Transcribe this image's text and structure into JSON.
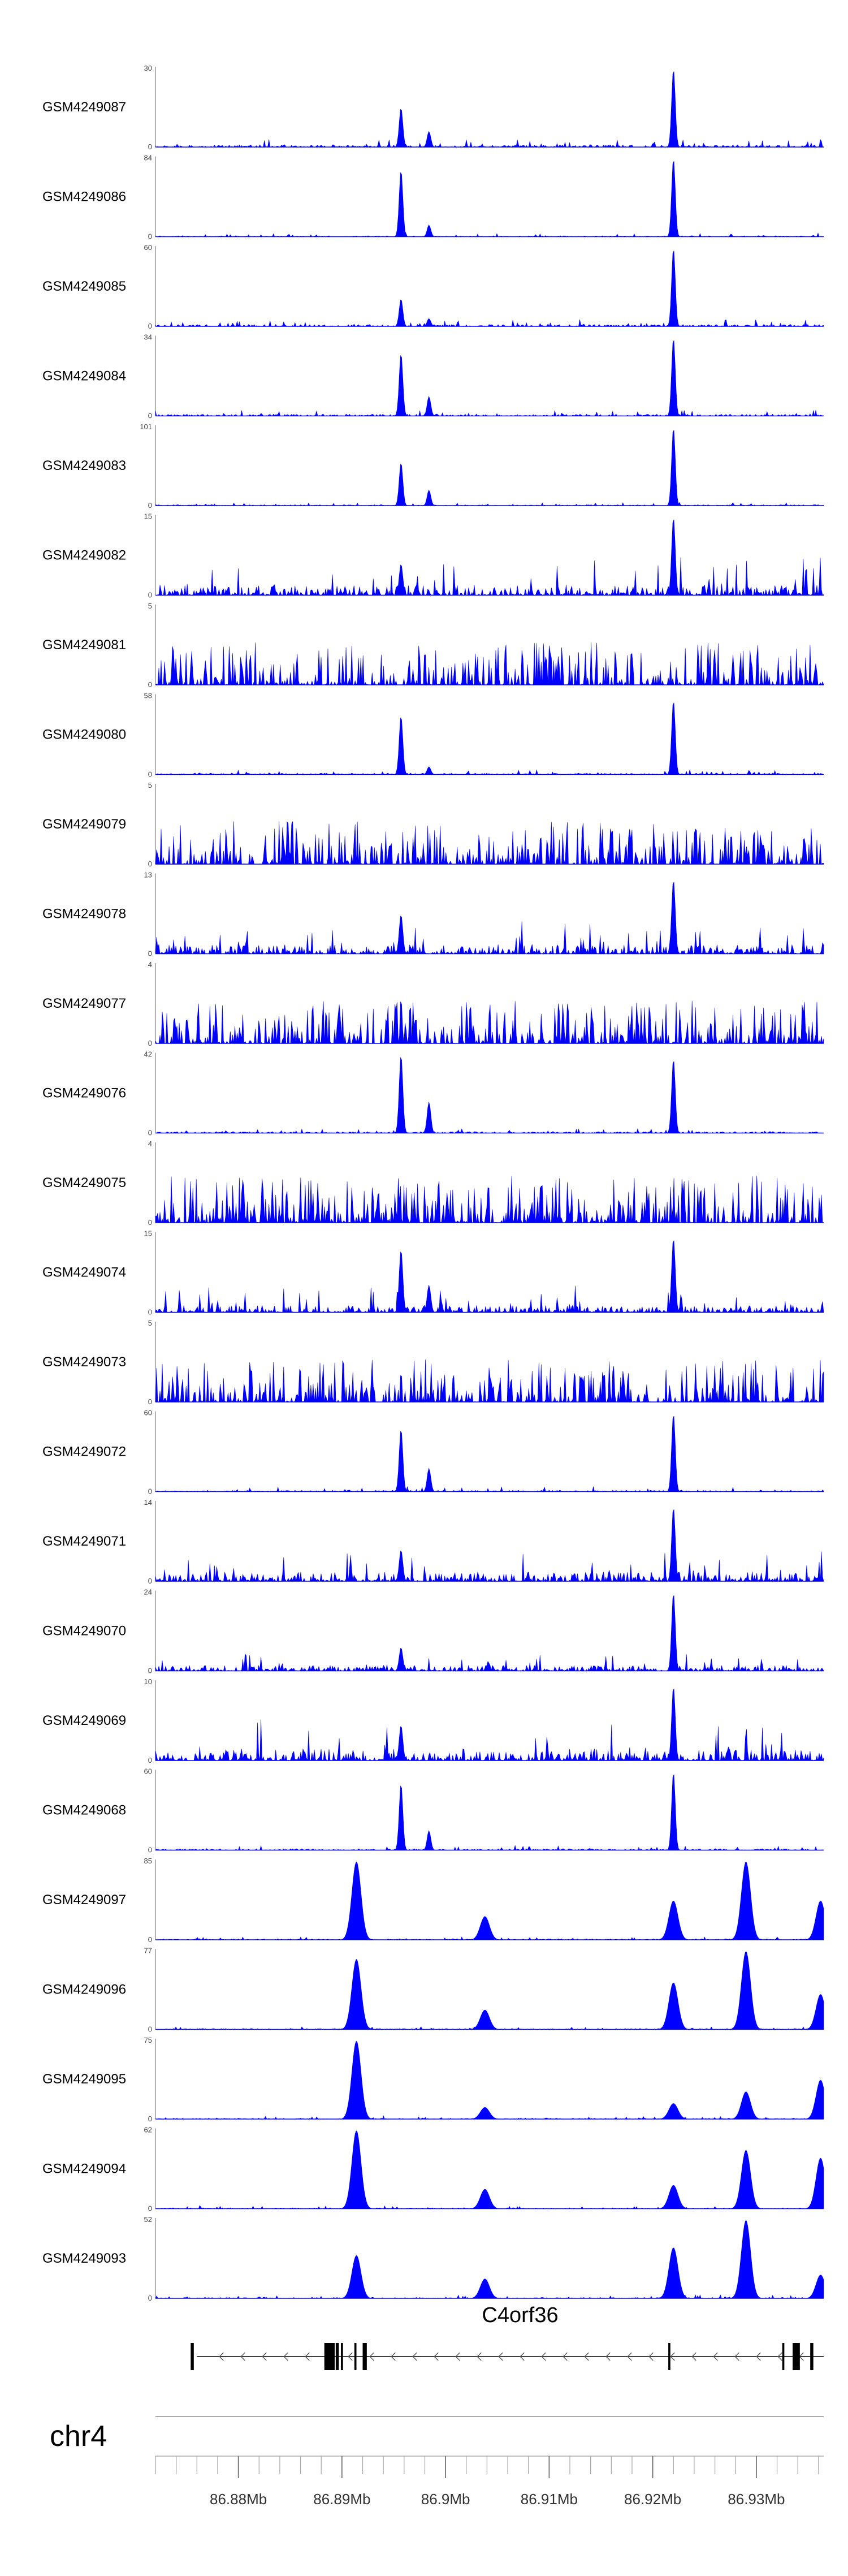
{
  "chart_data": {
    "type": "area",
    "chromosome": "chr4",
    "genome_axis": {
      "xlim_mb": [
        86.872,
        86.9365
      ],
      "tick_labels": [
        "86.88Mb",
        "86.89Mb",
        "86.9Mb",
        "86.91Mb",
        "86.92Mb",
        "86.93Mb"
      ],
      "tick_values_mb": [
        86.88,
        86.89,
        86.9,
        86.91,
        86.92,
        86.93
      ],
      "minor_tick_step_mb": 0.002
    },
    "gene": {
      "name": "C4orf36",
      "strand": "-",
      "start_mb": 86.876,
      "end_mb": 86.9365,
      "exons_mb": [
        [
          86.8754,
          86.8757
        ],
        [
          86.8883,
          86.8893
        ],
        [
          86.8894,
          86.8897
        ],
        [
          86.8899,
          86.8901
        ],
        [
          86.8912,
          86.8914
        ],
        [
          86.892,
          86.8924
        ],
        [
          86.9215,
          86.9217
        ],
        [
          86.9325,
          86.9327
        ],
        [
          86.9335,
          86.9342
        ],
        [
          86.9352,
          86.9355
        ]
      ]
    },
    "peak_positions_mb": {
      "a": 86.8957,
      "b": 86.8984,
      "c": 86.922,
      "d": 86.8914,
      "e": 86.9038,
      "f": 86.929,
      "g": 86.9362
    },
    "series": [
      {
        "name": "GSM4249087",
        "ymax": 30,
        "noise": 0.05,
        "peaks": [
          [
            "c",
            1.0
          ],
          [
            "a",
            0.5
          ],
          [
            "b",
            0.2
          ]
        ]
      },
      {
        "name": "GSM4249086",
        "ymax": 84,
        "noise": 0.02,
        "peaks": [
          [
            "a",
            0.85
          ],
          [
            "c",
            1.0
          ],
          [
            "b",
            0.15
          ]
        ]
      },
      {
        "name": "GSM4249085",
        "ymax": 60,
        "noise": 0.04,
        "peaks": [
          [
            "c",
            1.0
          ],
          [
            "a",
            0.35
          ],
          [
            "b",
            0.1
          ]
        ]
      },
      {
        "name": "GSM4249084",
        "ymax": 34,
        "noise": 0.04,
        "peaks": [
          [
            "a",
            0.8
          ],
          [
            "c",
            1.0
          ],
          [
            "b",
            0.25
          ]
        ]
      },
      {
        "name": "GSM4249083",
        "ymax": 101,
        "noise": 0.02,
        "peaks": [
          [
            "a",
            0.55
          ],
          [
            "c",
            1.0
          ],
          [
            "b",
            0.2
          ]
        ]
      },
      {
        "name": "GSM4249082",
        "ymax": 15,
        "noise": 0.22,
        "peaks": [
          [
            "c",
            1.0
          ],
          [
            "a",
            0.4
          ]
        ]
      },
      {
        "name": "GSM4249081",
        "ymax": 5,
        "noise": 0.55,
        "peaks": []
      },
      {
        "name": "GSM4249080",
        "ymax": 58,
        "noise": 0.03,
        "peaks": [
          [
            "a",
            0.75
          ],
          [
            "c",
            0.95
          ],
          [
            "b",
            0.1
          ]
        ]
      },
      {
        "name": "GSM4249079",
        "ymax": 5,
        "noise": 0.55,
        "peaks": []
      },
      {
        "name": "GSM4249078",
        "ymax": 13,
        "noise": 0.2,
        "peaks": [
          [
            "c",
            0.95
          ],
          [
            "a",
            0.5
          ]
        ]
      },
      {
        "name": "GSM4249077",
        "ymax": 4,
        "noise": 0.55,
        "peaks": []
      },
      {
        "name": "GSM4249076",
        "ymax": 42,
        "noise": 0.03,
        "peaks": [
          [
            "a",
            1.0
          ],
          [
            "b",
            0.4
          ],
          [
            "c",
            0.95
          ]
        ]
      },
      {
        "name": "GSM4249075",
        "ymax": 4,
        "noise": 0.6,
        "peaks": []
      },
      {
        "name": "GSM4249074",
        "ymax": 15,
        "noise": 0.15,
        "peaks": [
          [
            "a",
            0.8
          ],
          [
            "c",
            0.95
          ],
          [
            "b",
            0.35
          ]
        ]
      },
      {
        "name": "GSM4249073",
        "ymax": 5,
        "noise": 0.55,
        "peaks": []
      },
      {
        "name": "GSM4249072",
        "ymax": 60,
        "noise": 0.03,
        "peaks": [
          [
            "a",
            0.8
          ],
          [
            "c",
            1.0
          ],
          [
            "b",
            0.3
          ]
        ]
      },
      {
        "name": "GSM4249071",
        "ymax": 14,
        "noise": 0.2,
        "peaks": [
          [
            "c",
            0.95
          ],
          [
            "a",
            0.4
          ]
        ]
      },
      {
        "name": "GSM4249070",
        "ymax": 24,
        "noise": 0.12,
        "peaks": [
          [
            "c",
            1.0
          ],
          [
            "a",
            0.3
          ]
        ]
      },
      {
        "name": "GSM4249069",
        "ymax": 10,
        "noise": 0.25,
        "peaks": [
          [
            "c",
            0.95
          ],
          [
            "a",
            0.45
          ]
        ]
      },
      {
        "name": "GSM4249068",
        "ymax": 60,
        "noise": 0.03,
        "peaks": [
          [
            "a",
            0.85
          ],
          [
            "c",
            1.0
          ],
          [
            "b",
            0.25
          ]
        ]
      },
      {
        "name": "GSM4249097",
        "ymax": 85,
        "noise": 0.02,
        "peaks": [
          [
            "d",
            1.0
          ],
          [
            "e",
            0.3
          ],
          [
            "c",
            0.5
          ],
          [
            "f",
            1.0
          ],
          [
            "g",
            0.5
          ]
        ]
      },
      {
        "name": "GSM4249096",
        "ymax": 77,
        "noise": 0.02,
        "peaks": [
          [
            "d",
            0.9
          ],
          [
            "e",
            0.25
          ],
          [
            "c",
            0.6
          ],
          [
            "f",
            1.0
          ],
          [
            "g",
            0.45
          ]
        ]
      },
      {
        "name": "GSM4249095",
        "ymax": 75,
        "noise": 0.02,
        "peaks": [
          [
            "d",
            1.0
          ],
          [
            "e",
            0.15
          ],
          [
            "c",
            0.2
          ],
          [
            "f",
            0.35
          ],
          [
            "g",
            0.5
          ]
        ]
      },
      {
        "name": "GSM4249094",
        "ymax": 62,
        "noise": 0.02,
        "peaks": [
          [
            "d",
            1.0
          ],
          [
            "e",
            0.25
          ],
          [
            "c",
            0.3
          ],
          [
            "f",
            0.75
          ],
          [
            "g",
            0.65
          ]
        ]
      },
      {
        "name": "GSM4249093",
        "ymax": 52,
        "noise": 0.02,
        "peaks": [
          [
            "d",
            0.55
          ],
          [
            "e",
            0.25
          ],
          [
            "c",
            0.65
          ],
          [
            "f",
            1.0
          ],
          [
            "g",
            0.3
          ]
        ]
      }
    ]
  }
}
